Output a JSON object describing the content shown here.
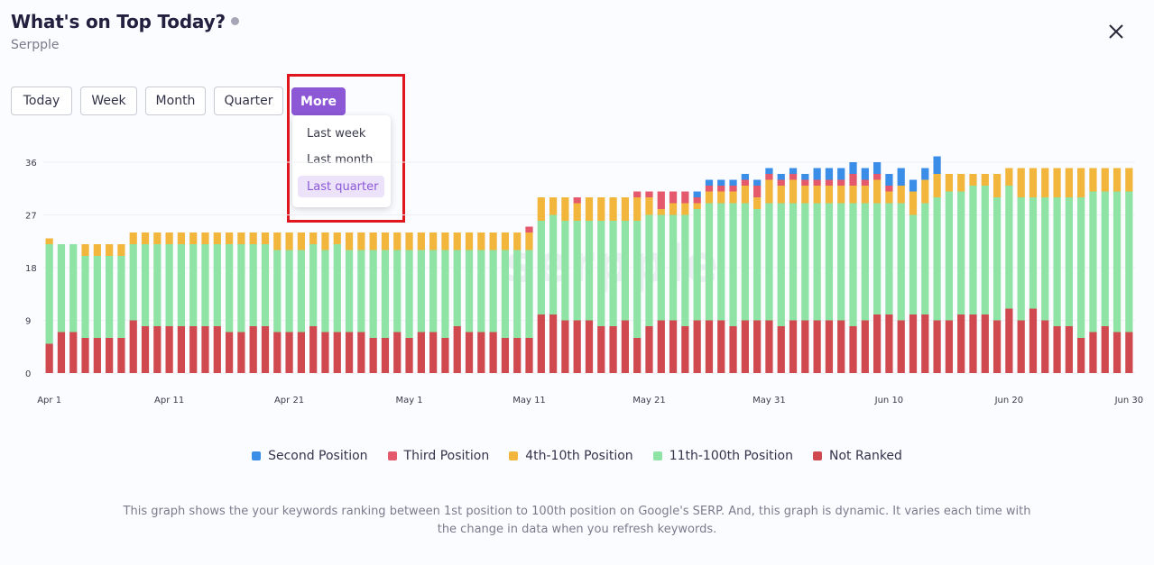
{
  "header": {
    "title": "What's on Top Today?",
    "subtitle": "Serpple"
  },
  "tabs": [
    "Today",
    "Week",
    "Month",
    "Quarter",
    "More"
  ],
  "active_tab": "More",
  "menu": {
    "items": [
      "Last week",
      "Last month",
      "Last quarter"
    ],
    "selected": "Last quarter"
  },
  "note": {
    "line1": "This graph shows the your keywords ranking between 1st position to 100th position on Google's SERP. And, this graph is dynamic. It varies each time with",
    "line2": "the change in data when you refresh keywords."
  },
  "watermark": "serpple",
  "colors": {
    "accent": "#8c58d6",
    "second": "#3a8ee8",
    "third": "#e45a6c",
    "fourth": "#f2b63d",
    "eleventh": "#8fe3a5",
    "not_ranked": "#d0494e"
  },
  "chart_data": {
    "type": "bar",
    "stacked": true,
    "ylim": [
      0,
      36
    ],
    "yticks": [
      0,
      9,
      18,
      27,
      36
    ],
    "x_tick_labels": [
      {
        "label": "Apr 1",
        "index": 0
      },
      {
        "label": "Apr 11",
        "index": 10
      },
      {
        "label": "Apr 21",
        "index": 20
      },
      {
        "label": "May 1",
        "index": 30
      },
      {
        "label": "May 11",
        "index": 40
      },
      {
        "label": "May 21",
        "index": 50
      },
      {
        "label": "May 31",
        "index": 60
      },
      {
        "label": "Jun 10",
        "index": 70
      },
      {
        "label": "Jun 20",
        "index": 80
      },
      {
        "label": "Jun 30",
        "index": 90
      }
    ],
    "categories": [
      "Apr 1",
      "Apr 2",
      "Apr 3",
      "Apr 4",
      "Apr 5",
      "Apr 6",
      "Apr 7",
      "Apr 8",
      "Apr 9",
      "Apr 10",
      "Apr 11",
      "Apr 12",
      "Apr 13",
      "Apr 14",
      "Apr 15",
      "Apr 16",
      "Apr 17",
      "Apr 18",
      "Apr 19",
      "Apr 20",
      "Apr 21",
      "Apr 22",
      "Apr 23",
      "Apr 24",
      "Apr 25",
      "Apr 26",
      "Apr 27",
      "Apr 28",
      "Apr 29",
      "Apr 30",
      "May 1",
      "May 2",
      "May 3",
      "May 4",
      "May 5",
      "May 6",
      "May 7",
      "May 8",
      "May 9",
      "May 10",
      "May 11",
      "May 12",
      "May 13",
      "May 14",
      "May 15",
      "May 16",
      "May 17",
      "May 18",
      "May 19",
      "May 20",
      "May 21",
      "May 22",
      "May 23",
      "May 24",
      "May 25",
      "May 26",
      "May 27",
      "May 28",
      "May 29",
      "May 30",
      "May 31",
      "Jun 1",
      "Jun 2",
      "Jun 3",
      "Jun 4",
      "Jun 5",
      "Jun 6",
      "Jun 7",
      "Jun 8",
      "Jun 9",
      "Jun 10",
      "Jun 11",
      "Jun 12",
      "Jun 13",
      "Jun 14",
      "Jun 15",
      "Jun 16",
      "Jun 17",
      "Jun 18",
      "Jun 19",
      "Jun 20",
      "Jun 21",
      "Jun 22",
      "Jun 23",
      "Jun 24",
      "Jun 25",
      "Jun 26",
      "Jun 27",
      "Jun 28",
      "Jun 29",
      "Jun 30"
    ],
    "series": [
      {
        "name": "Not Ranked",
        "color": "#d0494e",
        "values": [
          5,
          7,
          7,
          6,
          6,
          6,
          6,
          9,
          8,
          8,
          8,
          8,
          8,
          8,
          8,
          7,
          7,
          8,
          8,
          7,
          7,
          7,
          8,
          7,
          7,
          7,
          7,
          6,
          6,
          7,
          6,
          7,
          7,
          6,
          8,
          7,
          7,
          7,
          6,
          6,
          6,
          10,
          10,
          9,
          9,
          9,
          8,
          8,
          9,
          6,
          8,
          9,
          9,
          8,
          9,
          9,
          9,
          8,
          9,
          9,
          9,
          8,
          9,
          9,
          9,
          9,
          9,
          8,
          9,
          10,
          10,
          9,
          10,
          10,
          9,
          9,
          10,
          10,
          10,
          9,
          11,
          9,
          11,
          9,
          8,
          8,
          6,
          7,
          8,
          7,
          7
        ]
      },
      {
        "name": "11th-100th Position",
        "color": "#8fe3a5",
        "values": [
          17,
          15,
          15,
          14,
          14,
          14,
          14,
          13,
          14,
          14,
          14,
          14,
          14,
          14,
          14,
          15,
          15,
          14,
          14,
          14,
          14,
          14,
          14,
          14,
          15,
          14,
          14,
          15,
          15,
          14,
          15,
          14,
          14,
          15,
          13,
          14,
          14,
          14,
          15,
          15,
          15,
          16,
          17,
          17,
          17,
          17,
          18,
          18,
          17,
          20,
          19,
          18,
          18,
          19,
          19,
          20,
          20,
          21,
          20,
          19,
          20,
          21,
          20,
          20,
          20,
          20,
          20,
          21,
          20,
          19,
          19,
          20,
          17,
          19,
          21,
          22,
          21,
          22,
          22,
          21,
          21,
          21,
          19,
          21,
          22,
          22,
          24,
          24,
          23,
          24,
          24
        ]
      },
      {
        "name": "4th-10th Position",
        "color": "#f2b63d",
        "values": [
          1,
          0,
          0,
          2,
          2,
          2,
          2,
          2,
          2,
          2,
          2,
          2,
          2,
          2,
          2,
          2,
          2,
          2,
          2,
          3,
          3,
          3,
          2,
          3,
          2,
          3,
          3,
          3,
          3,
          3,
          3,
          3,
          3,
          3,
          3,
          3,
          3,
          3,
          3,
          3,
          3,
          4,
          3,
          4,
          3,
          4,
          4,
          4,
          4,
          4,
          3,
          1,
          2,
          2,
          1,
          2,
          2,
          2,
          3,
          2,
          4,
          3,
          4,
          3,
          3,
          3,
          3,
          3,
          3,
          4,
          2,
          3,
          4,
          4,
          4,
          3,
          3,
          2,
          2,
          4,
          3,
          5,
          5,
          5,
          5,
          5,
          5,
          4,
          4,
          4,
          4
        ]
      },
      {
        "name": "Third Position",
        "color": "#e45a6c",
        "values": [
          0,
          0,
          0,
          0,
          0,
          0,
          0,
          0,
          0,
          0,
          0,
          0,
          0,
          0,
          0,
          0,
          0,
          0,
          0,
          0,
          0,
          0,
          0,
          0,
          0,
          0,
          0,
          0,
          0,
          0,
          0,
          0,
          0,
          0,
          0,
          0,
          0,
          0,
          0,
          0,
          1,
          0,
          0,
          0,
          1,
          0,
          0,
          0,
          0,
          1,
          1,
          3,
          2,
          2,
          1,
          1,
          1,
          1,
          1,
          2,
          1,
          1,
          1,
          1,
          1,
          1,
          1,
          2,
          1,
          1,
          1,
          0,
          0,
          0,
          0,
          0,
          0,
          0,
          0,
          0,
          0,
          0,
          0,
          0,
          0,
          0,
          0,
          0,
          0,
          0,
          0
        ]
      },
      {
        "name": "Second Position",
        "color": "#3a8ee8",
        "values": [
          0,
          0,
          0,
          0,
          0,
          0,
          0,
          0,
          0,
          0,
          0,
          0,
          0,
          0,
          0,
          0,
          0,
          0,
          0,
          0,
          0,
          0,
          0,
          0,
          0,
          0,
          0,
          0,
          0,
          0,
          0,
          0,
          0,
          0,
          0,
          0,
          0,
          0,
          0,
          0,
          0,
          0,
          0,
          0,
          0,
          0,
          0,
          0,
          0,
          0,
          0,
          0,
          0,
          0,
          1,
          1,
          1,
          1,
          1,
          1,
          1,
          1,
          1,
          1,
          2,
          2,
          2,
          2,
          2,
          2,
          2,
          3,
          2,
          2,
          3,
          0,
          0,
          0,
          0,
          0,
          0,
          0,
          0,
          0,
          0,
          0,
          0,
          0,
          0,
          0,
          0
        ]
      }
    ],
    "legend": [
      "Second Position",
      "Third Position",
      "4th-10th Position",
      "11th-100th Position",
      "Not Ranked"
    ],
    "legend_placement": "bottom",
    "grid": true
  }
}
